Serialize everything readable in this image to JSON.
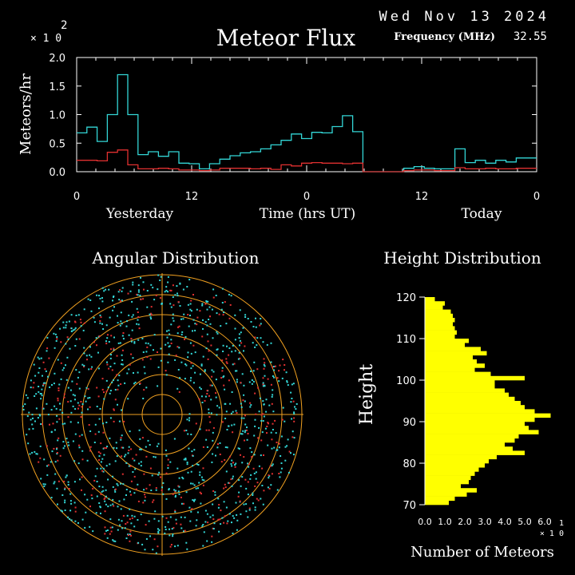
{
  "header": {
    "date": "Wed Nov 13 2024",
    "frequency_label": "Frequency (MHz)",
    "frequency_value": "32.55"
  },
  "colors": {
    "background": "#000000",
    "foreground": "#ffffff",
    "flux_high": "#33d6d6",
    "flux_low": "#e03030",
    "polar_rings": "#f0a020",
    "height_bars": "#ffff00"
  },
  "chart_data": [
    {
      "type": "line",
      "subtype": "step",
      "title": "Meteor Flux",
      "ylabel": "Meteors/hr",
      "y_scale_exponent": "2",
      "y_scale_prefix": "× 1 0",
      "ylim": [
        0,
        2.0
      ],
      "y_ticks": [
        "0.0",
        "0.5",
        "1.0",
        "1.5",
        "2.0"
      ],
      "xlim": [
        0,
        48
      ],
      "x_tick_values": [
        0,
        12,
        24,
        36,
        48
      ],
      "x_ticks": [
        "0",
        "12",
        "0",
        "12",
        "0"
      ],
      "x_labels": [
        "Yesterday",
        "Time (hrs UT)",
        "Today"
      ],
      "series": [
        {
          "color": "#33d6d6",
          "values": [
            0.68,
            0.78,
            0.53,
            1.0,
            1.7,
            1.0,
            0.3,
            0.35,
            0.27,
            0.35,
            0.15,
            0.14,
            0.05,
            0.14,
            0.22,
            0.28,
            0.33,
            0.35,
            0.4,
            0.47,
            0.55,
            0.66,
            0.58,
            0.69,
            0.68,
            0.79,
            0.98,
            0.7,
            0.0,
            0.0,
            0.0,
            0.0,
            0.06,
            0.09,
            0.06,
            0.05,
            0.05,
            0.4,
            0.16,
            0.2,
            0.15,
            0.2,
            0.17,
            0.24,
            0.24
          ]
        },
        {
          "color": "#e03030",
          "values": [
            0.2,
            0.2,
            0.19,
            0.34,
            0.38,
            0.12,
            0.05,
            0.05,
            0.06,
            0.05,
            0.03,
            0.03,
            0.02,
            0.03,
            0.06,
            0.06,
            0.06,
            0.05,
            0.06,
            0.04,
            0.12,
            0.1,
            0.15,
            0.16,
            0.15,
            0.15,
            0.14,
            0.15,
            0.0,
            0.0,
            0.0,
            0.0,
            0.02,
            0.03,
            0.03,
            0.02,
            0.02,
            0.07,
            0.05,
            0.05,
            0.06,
            0.05,
            0.05,
            0.06,
            0.06
          ]
        }
      ]
    },
    {
      "type": "scatter",
      "subtype": "polar",
      "title": "Angular Distribution",
      "rings": 7,
      "point_colors": [
        "#33d6d6",
        "#e03030"
      ],
      "points_description_note": ""
    },
    {
      "type": "bar",
      "orientation": "horizontal",
      "title": "Height Distribution",
      "ylabel": "Height",
      "xlabel": "Number of Meteors",
      "x_scale_exponent": "1",
      "x_scale_prefix": "× 1 0",
      "ylim": [
        70,
        120
      ],
      "y_ticks": [
        "70",
        "80",
        "90",
        "100",
        "110",
        "120"
      ],
      "xlim": [
        0,
        6.0
      ],
      "x_ticks": [
        "0.0",
        "1.0",
        "2.0",
        "3.0",
        "4.0",
        "5.0",
        "6.0"
      ],
      "heights": [
        120,
        119,
        118,
        117,
        116,
        115,
        114,
        113,
        112,
        111,
        110,
        109,
        108,
        107,
        106,
        105,
        104,
        103,
        102,
        101,
        100,
        99,
        98,
        97,
        96,
        95,
        94,
        93,
        92,
        91,
        90,
        89,
        88,
        87,
        86,
        85,
        84,
        83,
        82,
        81,
        80,
        79,
        78,
        77,
        76,
        75,
        74,
        73,
        72,
        71
      ],
      "values": [
        0.5,
        1.0,
        0.9,
        1.3,
        1.4,
        1.5,
        1.4,
        1.5,
        1.6,
        1.5,
        2.2,
        2.0,
        2.8,
        3.1,
        2.4,
        2.6,
        3.0,
        2.5,
        3.3,
        5.0,
        3.5,
        3.5,
        4.0,
        4.2,
        4.5,
        4.8,
        5.0,
        5.5,
        6.3,
        5.5,
        5.0,
        5.2,
        5.7,
        4.7,
        4.5,
        4.0,
        4.4,
        5.0,
        3.6,
        3.2,
        3.0,
        2.7,
        2.5,
        2.3,
        2.2,
        1.8,
        2.6,
        2.1,
        1.5,
        1.2
      ]
    }
  ]
}
